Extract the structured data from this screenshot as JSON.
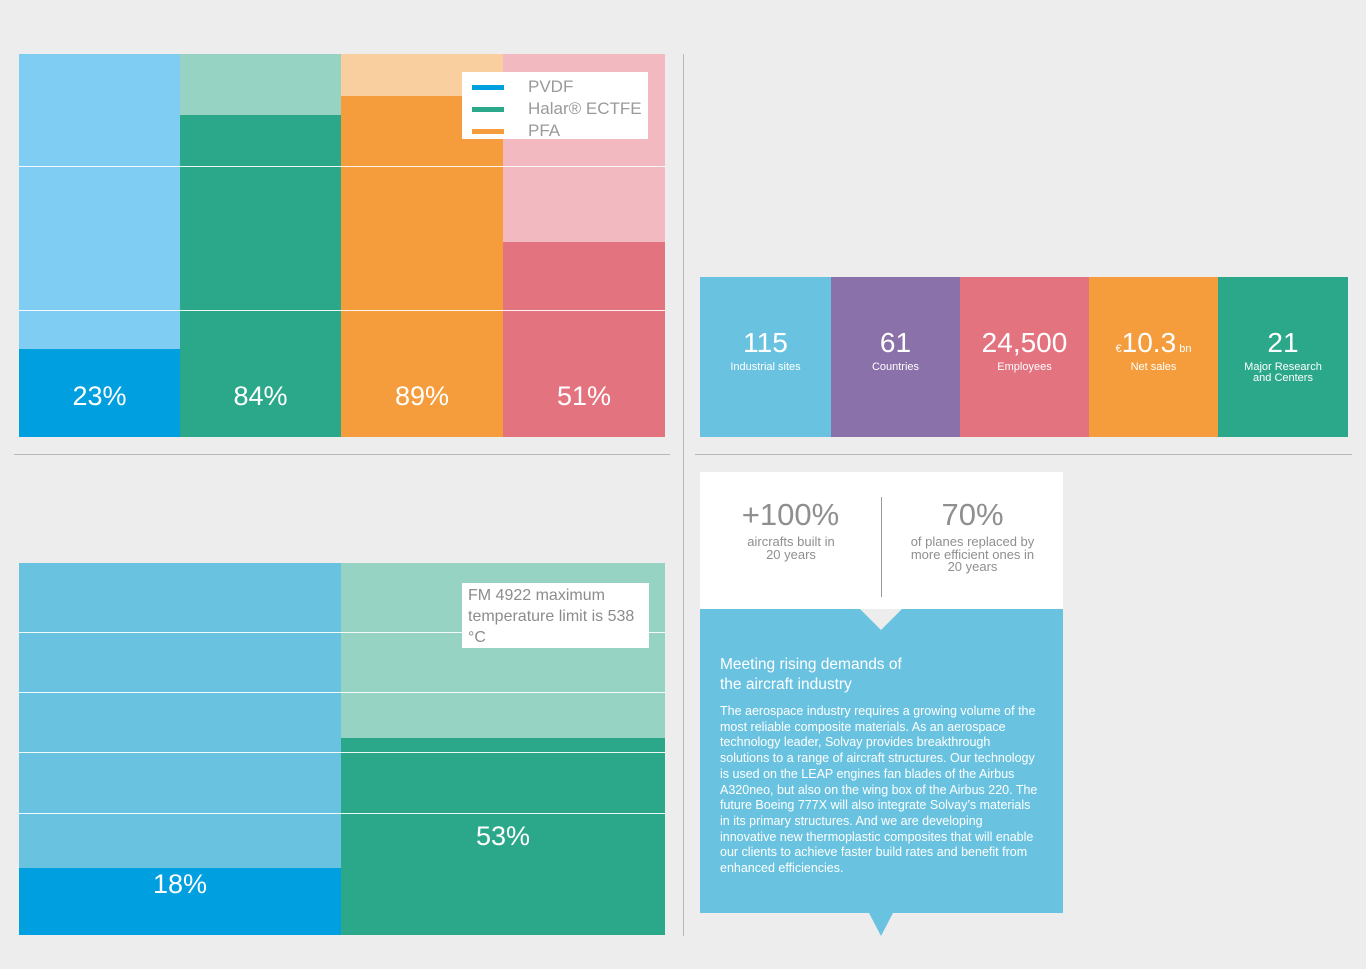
{
  "colors": {
    "background": "#ededed",
    "pvdf_light": "#7fcdf2",
    "pvdf_dark": "#009fe0",
    "halar_light": "#97d3c2",
    "halar_dark": "#2ba88a",
    "pfa_light": "#f9cfa0",
    "pfa_dark": "#f59c3c",
    "red_light": "#f3b9c1",
    "red_dark": "#e47380",
    "stat_blue": "#69c3e0",
    "stat_purple": "#8a71a9",
    "stat_red": "#e47380",
    "stat_orange": "#f59c3c",
    "stat_green": "#2ba88a"
  },
  "chart_data": [
    {
      "type": "bar",
      "categories": [
        "",
        "",
        "",
        ""
      ],
      "values": [
        23,
        84,
        89,
        51
      ],
      "value_labels": [
        "23%",
        "84%",
        "89%",
        "51%"
      ],
      "background_level": [
        100,
        84,
        89,
        51
      ],
      "legend": {
        "placement": "top-right",
        "entries": [
          {
            "label": "PVDF",
            "color": "#009fe0"
          },
          {
            "label": "Halar® ECTFE",
            "color": "#2ba88a"
          },
          {
            "label": "PFA",
            "color": "#f59c3c"
          }
        ]
      },
      "ylim": [
        0,
        100
      ],
      "grid": true
    },
    {
      "type": "bar",
      "categories": [
        "",
        ""
      ],
      "values": [
        18,
        53
      ],
      "value_labels": [
        "18%",
        "53%"
      ],
      "annotation": "FM 4922 maximum temperature limit is 538 °C",
      "ylim": [
        0,
        100
      ],
      "grid": true
    }
  ],
  "stats": [
    {
      "prefix": "",
      "value": "115",
      "suffix": "",
      "label": "Industrial sites"
    },
    {
      "prefix": "",
      "value": "61",
      "suffix": "",
      "label": "Countries"
    },
    {
      "prefix": "",
      "value": "24,500",
      "suffix": "",
      "label": "Employees"
    },
    {
      "prefix": "€",
      "value": "10.3",
      "suffix": " bn",
      "label": "Net sales"
    },
    {
      "prefix": "",
      "value": "21",
      "suffix": "",
      "label": "Major Research and Centers"
    }
  ],
  "kpis": [
    {
      "value": "+100%",
      "label": "aircrafts built in 20 years"
    },
    {
      "value": "70%",
      "label": "of planes replaced by more efficient ones in 20 years"
    }
  ],
  "info": {
    "title": "Meeting rising demands of the aircraft industry",
    "body": "The aerospace industry requires a growing volume of the most reliable composite materials. As an aerospace technology leader, Solvay provides breakthrough solutions to a range of aircraft structures. Our technology is used on the LEAP engines fan blades of the Airbus A320neo, but also on the wing box of the Airbus 220. The future Boeing 777X will also integrate Solvay’s materials in its primary structures. And we are developing innovative new thermoplastic composites that will enable our clients to achieve faster build rates and benefit from enhanced efficiencies."
  }
}
